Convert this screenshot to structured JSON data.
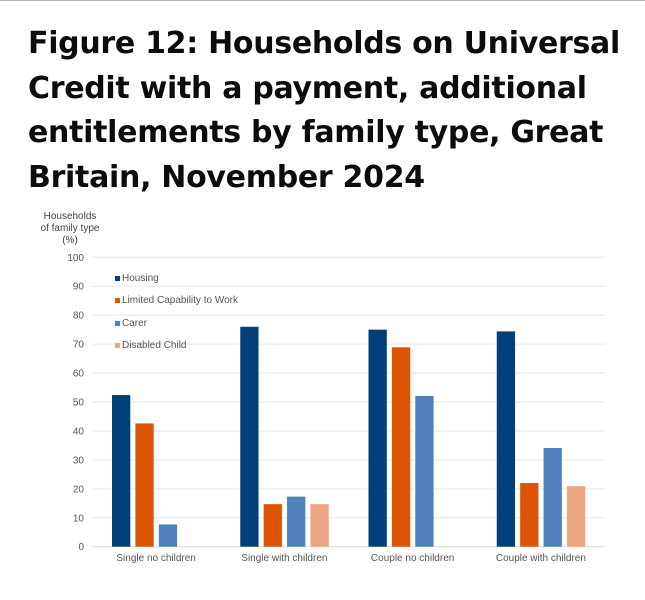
{
  "title": "Figure 12: Households on Universal Credit with a payment, additional entitlements by family type, Great Britain, November 2024",
  "chart_data": {
    "type": "bar",
    "title": "Figure 12: Households on Universal Credit with a payment, additional entitlements by family type, Great Britain, November 2024",
    "ylabel_lines": [
      "Households",
      "of family type",
      "(%)"
    ],
    "xlabel": "",
    "ylim": [
      0,
      100
    ],
    "yticks": [
      0,
      10,
      20,
      30,
      40,
      50,
      60,
      70,
      80,
      90,
      100
    ],
    "grid": true,
    "legend_position": "top-left",
    "categories": [
      "Single no children",
      "Single with children",
      "Couple no children",
      "Couple with children"
    ],
    "series": [
      {
        "name": "Housing",
        "color": "#003f7a",
        "values": [
          52.4,
          76.0,
          75.0,
          74.4
        ]
      },
      {
        "name": "Limited Capability to Work",
        "color": "#dc5505",
        "values": [
          42.6,
          14.7,
          68.9,
          22.0
        ]
      },
      {
        "name": "Carer",
        "color": "#4f81bd",
        "values": [
          7.7,
          17.3,
          52.1,
          34.1
        ]
      },
      {
        "name": "Disabled Child",
        "color": "#eda684",
        "values": [
          null,
          14.7,
          null,
          20.9
        ]
      }
    ]
  }
}
